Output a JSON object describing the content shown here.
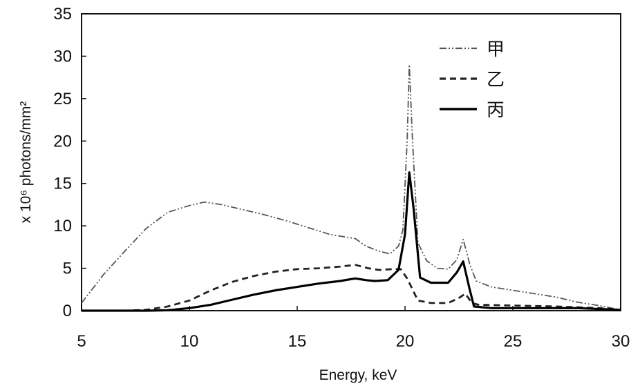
{
  "chart_data": {
    "type": "line",
    "xlabel": "Energy, keV",
    "ylabel": "x 10⁶ photons/mm²",
    "xlim": [
      5,
      30
    ],
    "ylim": [
      0,
      35
    ],
    "x_ticks": [
      5,
      10,
      15,
      20,
      25,
      30
    ],
    "y_ticks": [
      0,
      5,
      10,
      15,
      20,
      25,
      30,
      35
    ],
    "grid": false,
    "legend_position": "top-right",
    "series": [
      {
        "name": "甲",
        "style": "dash-dot-dot",
        "color": "#555555",
        "points": [
          [
            5,
            0.9
          ],
          [
            6,
            4.2
          ],
          [
            7,
            7.0
          ],
          [
            8,
            9.7
          ],
          [
            9,
            11.6
          ],
          [
            10,
            12.4
          ],
          [
            10.7,
            12.8
          ],
          [
            11.5,
            12.5
          ],
          [
            12.5,
            11.9
          ],
          [
            13.5,
            11.3
          ],
          [
            14.5,
            10.6
          ],
          [
            15.5,
            9.8
          ],
          [
            16.5,
            9.0
          ],
          [
            17.2,
            8.7
          ],
          [
            17.7,
            8.5
          ],
          [
            18.2,
            7.6
          ],
          [
            18.8,
            7.0
          ],
          [
            19.3,
            6.7
          ],
          [
            19.7,
            7.6
          ],
          [
            19.9,
            9.5
          ],
          [
            20.1,
            20.0
          ],
          [
            20.2,
            29.0
          ],
          [
            20.35,
            20.0
          ],
          [
            20.6,
            8.0
          ],
          [
            21.0,
            5.9
          ],
          [
            21.5,
            5.0
          ],
          [
            22.0,
            4.9
          ],
          [
            22.4,
            6.0
          ],
          [
            22.7,
            8.4
          ],
          [
            23.0,
            5.5
          ],
          [
            23.3,
            3.5
          ],
          [
            24,
            2.8
          ],
          [
            25,
            2.4
          ],
          [
            26,
            2.0
          ],
          [
            27,
            1.6
          ],
          [
            28,
            1.0
          ],
          [
            29,
            0.6
          ],
          [
            30,
            0.1
          ]
        ]
      },
      {
        "name": "乙",
        "style": "dashed",
        "color": "#222222",
        "points": [
          [
            5,
            0.0
          ],
          [
            7,
            0.0
          ],
          [
            8,
            0.1
          ],
          [
            9,
            0.5
          ],
          [
            10,
            1.2
          ],
          [
            11,
            2.4
          ],
          [
            12,
            3.4
          ],
          [
            13,
            4.1
          ],
          [
            14,
            4.6
          ],
          [
            15,
            4.9
          ],
          [
            16,
            5.0
          ],
          [
            17,
            5.2
          ],
          [
            17.7,
            5.4
          ],
          [
            18.3,
            5.0
          ],
          [
            18.8,
            4.8
          ],
          [
            19.4,
            4.9
          ],
          [
            19.8,
            4.9
          ],
          [
            20.1,
            3.8
          ],
          [
            20.6,
            1.2
          ],
          [
            21.2,
            0.9
          ],
          [
            22.0,
            0.9
          ],
          [
            22.5,
            1.5
          ],
          [
            22.8,
            2.0
          ],
          [
            23.1,
            0.9
          ],
          [
            23.4,
            0.7
          ],
          [
            25,
            0.6
          ],
          [
            27,
            0.5
          ],
          [
            29,
            0.3
          ],
          [
            30,
            0.1
          ]
        ]
      },
      {
        "name": "丙",
        "style": "solid",
        "color": "#000000",
        "points": [
          [
            5,
            0.0
          ],
          [
            8,
            0.0
          ],
          [
            9,
            0.05
          ],
          [
            10,
            0.3
          ],
          [
            11,
            0.7
          ],
          [
            12,
            1.3
          ],
          [
            13,
            1.9
          ],
          [
            14,
            2.4
          ],
          [
            15,
            2.8
          ],
          [
            16,
            3.2
          ],
          [
            17,
            3.5
          ],
          [
            17.7,
            3.8
          ],
          [
            18.2,
            3.6
          ],
          [
            18.6,
            3.5
          ],
          [
            19.2,
            3.6
          ],
          [
            19.7,
            4.8
          ],
          [
            20.0,
            9.0
          ],
          [
            20.2,
            16.3
          ],
          [
            20.4,
            12.0
          ],
          [
            20.7,
            3.9
          ],
          [
            21.2,
            3.3
          ],
          [
            22.0,
            3.3
          ],
          [
            22.4,
            4.5
          ],
          [
            22.7,
            5.8
          ],
          [
            23.0,
            2.5
          ],
          [
            23.2,
            0.5
          ],
          [
            24,
            0.3
          ],
          [
            26,
            0.3
          ],
          [
            28,
            0.3
          ],
          [
            30,
            0.1
          ]
        ]
      }
    ]
  }
}
